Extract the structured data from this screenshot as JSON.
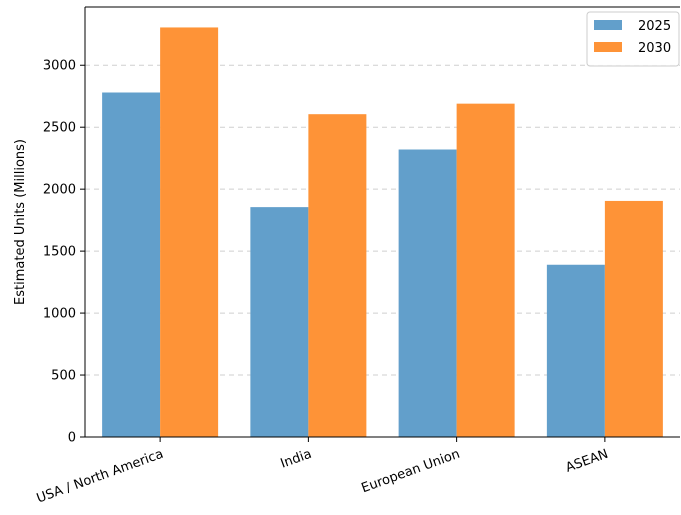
{
  "chart_data": {
    "type": "bar",
    "title": "",
    "xlabel": "",
    "ylabel": "Estimated Units (Millions)",
    "categories": [
      "USA / North America",
      "India",
      "European Union",
      "ASEAN"
    ],
    "series": [
      {
        "name": "2025",
        "values": [
          2780,
          1855,
          2320,
          1390
        ],
        "color": "#629fcb"
      },
      {
        "name": "2030",
        "values": [
          3305,
          2605,
          2690,
          1905
        ],
        "color": "#fe9337"
      }
    ],
    "ylim": [
      0,
      3470
    ],
    "yticks": [
      0,
      500,
      1000,
      1500,
      2000,
      2500,
      3000
    ],
    "grid": "y-dashed",
    "legend_position": "top-right",
    "x_tick_rotation": "-20deg"
  }
}
